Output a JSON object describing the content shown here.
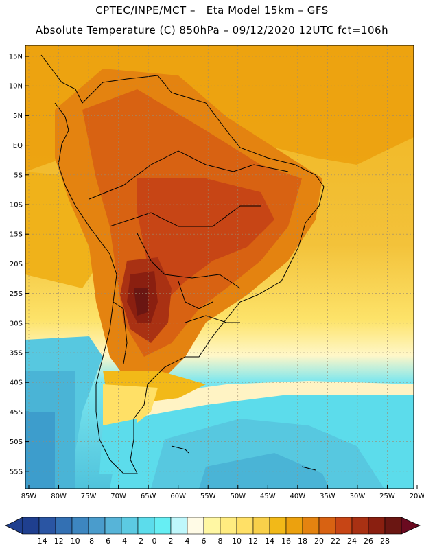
{
  "header": {
    "line1": "CPTEC/INPE/MCT –   Eta Model 15km – GFS",
    "line2": "Absolute Temperature (C) 850hPa – 09/12/2020 12UTC fct=106h"
  },
  "axes": {
    "lat_labels": [
      "15N",
      "10N",
      "5N",
      "EQ",
      "5S",
      "10S",
      "15S",
      "20S",
      "25S",
      "30S",
      "35S",
      "40S",
      "45S",
      "50S",
      "55S"
    ],
    "lon_labels": [
      "85W",
      "80W",
      "75W",
      "70W",
      "65W",
      "60W",
      "55W",
      "50W",
      "45W",
      "40W",
      "35W",
      "30W",
      "25W",
      "20W"
    ]
  },
  "colorbar": {
    "labels": [
      "-14",
      "-12",
      "-10",
      "-8",
      "-6",
      "-4",
      "-2",
      "0",
      "2",
      "4",
      "6",
      "8",
      "10",
      "12",
      "14",
      "16",
      "18",
      "20",
      "22",
      "24",
      "26",
      "28"
    ],
    "colors": [
      "#1f3f8f",
      "#2a55a3",
      "#3370b3",
      "#3d86c0",
      "#4a9ccc",
      "#57b4d8",
      "#5ccae2",
      "#5cdceb",
      "#66eef3",
      "#bff7fb",
      "#fffbe6",
      "#fff7a3",
      "#ffec80",
      "#ffe066",
      "#f8d04a",
      "#f2b918",
      "#eca10e",
      "#e48310",
      "#d86212",
      "#c74515",
      "#a93113",
      "#8a1f10",
      "#6a1612"
    ]
  }
}
